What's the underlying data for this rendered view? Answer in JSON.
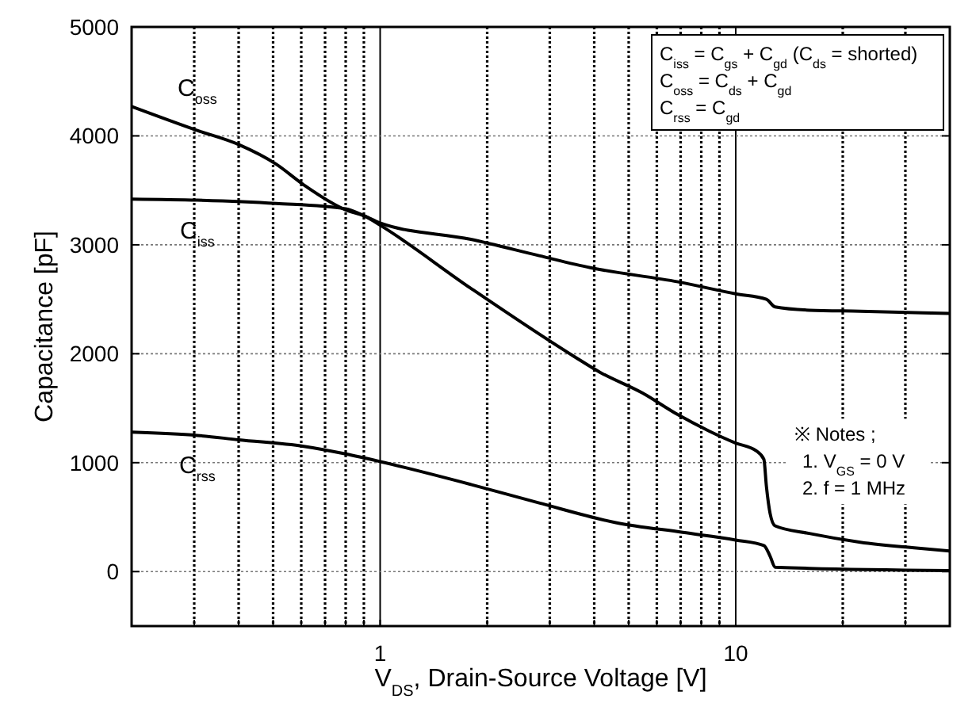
{
  "chart_data": {
    "type": "line",
    "xlabel": "V$_{DS}$, Drain-Source Voltage [V]",
    "ylabel": "Capacitance [pF]",
    "log": "x",
    "grid": true,
    "marker": "none",
    "line_style": "solid",
    "xlim": [
      0.2,
      40
    ],
    "ylim": [
      -500,
      5000
    ],
    "xticks": [
      {
        "value": 0.3,
        "label": null
      },
      {
        "value": 0.4,
        "label": null
      },
      {
        "value": 0.5,
        "label": null
      },
      {
        "value": 0.6,
        "label": null
      },
      {
        "value": 0.7,
        "label": null
      },
      {
        "value": 0.8,
        "label": null
      },
      {
        "value": 0.9,
        "label": null
      },
      1,
      {
        "value": 2,
        "label": null
      },
      {
        "value": 3,
        "label": null
      },
      {
        "value": 4,
        "label": null
      },
      {
        "value": 5,
        "label": null
      },
      {
        "value": 6,
        "label": null
      },
      {
        "value": 7,
        "label": null
      },
      {
        "value": 8,
        "label": null
      },
      {
        "value": 9,
        "label": null
      },
      10,
      {
        "value": 20,
        "label": null
      },
      {
        "value": 30,
        "label": null
      }
    ],
    "yticks": [
      0,
      1000,
      2000,
      3000,
      4000,
      5000
    ],
    "series": [
      {
        "name": "C$_{oss}$",
        "color": "#000000",
        "x": [
          0.2,
          0.306,
          0.4,
          0.51,
          0.61,
          0.8,
          0.91,
          1,
          1.8,
          3.53,
          4.15,
          5.46,
          6.88,
          8.42,
          10,
          11.4,
          12,
          12.2,
          12.5,
          12.9,
          16.1,
          22.4,
          31.3,
          39.9
        ],
        "values": [
          4270,
          4050,
          3920,
          3740,
          3550,
          3320,
          3260,
          3180,
          2600,
          1970,
          1830,
          1640,
          1440,
          1290,
          1180,
          1110,
          1030,
          780,
          530,
          420,
          350,
          270,
          220,
          190
        ]
      },
      {
        "name": "C$_{iss}$",
        "color": "#000000",
        "x": [
          0.2,
          0.306,
          0.51,
          0.8,
          0.91,
          1,
          1.8,
          2.8,
          3.9,
          6.88,
          10,
          12.2,
          12.9,
          16.1,
          22.4,
          39.9
        ],
        "values": [
          3420,
          3410,
          3380,
          3330,
          3260,
          3200,
          3050,
          2900,
          2790,
          2660,
          2550,
          2500,
          2430,
          2400,
          2390,
          2370
        ]
      },
      {
        "name": "C$_{rss}$",
        "color": "#000000",
        "x": [
          0.2,
          0.306,
          0.4,
          0.61,
          0.8,
          1,
          1.8,
          2.8,
          4.6,
          7.1,
          10,
          12,
          12.5,
          12.9,
          16.1,
          39.9
        ],
        "values": [
          1280,
          1250,
          1210,
          1150,
          1080,
          1010,
          800,
          630,
          450,
          360,
          290,
          240,
          140,
          40,
          30,
          10
        ]
      }
    ],
    "annotations": [
      "C$_{iss}$ = C$_{gs}$ + C$_{gd}$ (C$_{ds}$ = shorted)",
      "C$_{oss}$ = C$_{ds}$ + C$_{gd}$",
      "C$_{rss}$ = C$_{gd}$",
      "※ Notes ;",
      "1. V$_{GS}$ = 0 V",
      "2. f = 1 MHz"
    ]
  }
}
